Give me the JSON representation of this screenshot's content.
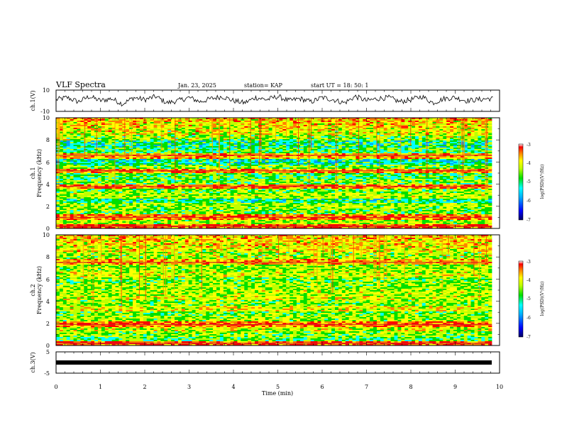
{
  "header": {
    "title": "VLF Spectra",
    "date": "Jan. 23, 2025",
    "station": "station= KAP",
    "start_time": "start  UT =   18: 50: 1"
  },
  "chart_data": [
    {
      "type": "line",
      "panel": "ch1-waveform",
      "ylabel": "ch.1(V)",
      "ylim": [
        -10,
        10
      ],
      "y_tick_labels": [
        "10",
        "-10"
      ],
      "xlim": [
        0,
        10
      ],
      "description_values": "noisy waveform oscillating roughly between -6 and +6 V around a small positive offset",
      "series": [
        {
          "x": [
            0,
            0.25,
            0.5,
            0.75,
            1.0,
            1.25,
            1.5,
            1.75,
            2.0,
            2.25,
            2.5,
            2.75,
            3.0,
            3.25,
            3.5,
            3.75,
            4.0,
            4.25,
            4.5,
            4.75,
            5.0,
            5.25,
            5.5,
            5.75,
            6.0,
            6.25,
            6.5,
            6.75,
            7.0,
            7.25,
            7.5,
            7.75,
            8.0,
            8.25,
            8.5,
            8.75,
            9.0,
            9.25,
            9.5,
            9.75
          ],
          "values": [
            1,
            3,
            -1,
            4,
            0,
            2,
            -3,
            3,
            1,
            4,
            -2,
            0,
            3,
            -1,
            2,
            4,
            0,
            -2,
            3,
            1,
            4,
            0,
            2,
            -1,
            3,
            1,
            -2,
            4,
            0,
            2,
            3,
            -1,
            1,
            4,
            -2,
            2,
            3,
            0,
            1,
            2
          ]
        }
      ]
    },
    {
      "type": "heatmap",
      "panel": "ch1-spectrogram",
      "ylabel_top": "ch.1",
      "ylabel": "Frequency (kHz)",
      "ylim": [
        0,
        10
      ],
      "y_tick_labels": [
        "0",
        "2",
        "4",
        "6",
        "8",
        "10"
      ],
      "xlim": [
        0,
        10
      ],
      "colorbar": {
        "label": "log(PSD)(V²/Hz)",
        "range": [
          -7,
          -3
        ],
        "tick_labels": [
          "-3",
          "-4",
          "-5",
          "-6",
          "-7"
        ]
      },
      "band_log_psd": [
        {
          "f_khz": 0.2,
          "level": -3.4
        },
        {
          "f_khz": 0.6,
          "level": -4.6
        },
        {
          "f_khz": 1.0,
          "level": -3.6
        },
        {
          "f_khz": 1.5,
          "level": -4.8
        },
        {
          "f_khz": 2.0,
          "level": -4.6
        },
        {
          "f_khz": 2.5,
          "level": -5.2
        },
        {
          "f_khz": 3.0,
          "level": -4.5
        },
        {
          "f_khz": 3.5,
          "level": -4.8
        },
        {
          "f_khz": 3.8,
          "level": -3.6
        },
        {
          "f_khz": 4.2,
          "level": -4.8
        },
        {
          "f_khz": 4.7,
          "level": -5.0
        },
        {
          "f_khz": 5.2,
          "level": -3.7
        },
        {
          "f_khz": 5.6,
          "level": -4.7
        },
        {
          "f_khz": 6.0,
          "level": -5.3
        },
        {
          "f_khz": 6.6,
          "level": -3.9
        },
        {
          "f_khz": 7.1,
          "level": -5.0
        },
        {
          "f_khz": 7.6,
          "level": -5.2
        },
        {
          "f_khz": 8.2,
          "level": -4.7
        },
        {
          "f_khz": 8.8,
          "level": -4.4
        },
        {
          "f_khz": 9.4,
          "level": -4.2
        },
        {
          "f_khz": 9.9,
          "level": -4.0
        }
      ]
    },
    {
      "type": "heatmap",
      "panel": "ch2-spectrogram",
      "ylabel_top": "ch.2",
      "ylabel": "Frequency (kHz)",
      "ylim": [
        0,
        10
      ],
      "y_tick_labels": [
        "0",
        "2",
        "4",
        "6",
        "8",
        "10"
      ],
      "xlim": [
        0,
        10
      ],
      "colorbar": {
        "label": "log(PSD)(V²/Hz)",
        "range": [
          -7,
          -3
        ],
        "tick_labels": [
          "-3",
          "-4",
          "-5",
          "-6",
          "-7"
        ]
      },
      "band_log_psd": [
        {
          "f_khz": 0.2,
          "level": -3.5
        },
        {
          "f_khz": 0.6,
          "level": -5.0
        },
        {
          "f_khz": 1.0,
          "level": -4.7
        },
        {
          "f_khz": 1.5,
          "level": -4.4
        },
        {
          "f_khz": 1.9,
          "level": -3.6
        },
        {
          "f_khz": 2.4,
          "level": -4.6
        },
        {
          "f_khz": 2.9,
          "level": -4.8
        },
        {
          "f_khz": 3.3,
          "level": -4.3
        },
        {
          "f_khz": 3.8,
          "level": -4.7
        },
        {
          "f_khz": 4.3,
          "level": -4.4
        },
        {
          "f_khz": 4.8,
          "level": -4.5
        },
        {
          "f_khz": 5.3,
          "level": -4.6
        },
        {
          "f_khz": 5.9,
          "level": -4.8
        },
        {
          "f_khz": 6.4,
          "level": -4.4
        },
        {
          "f_khz": 7.0,
          "level": -4.6
        },
        {
          "f_khz": 7.5,
          "level": -3.9
        },
        {
          "f_khz": 8.1,
          "level": -4.6
        },
        {
          "f_khz": 8.7,
          "level": -4.3
        },
        {
          "f_khz": 9.3,
          "level": -4.2
        },
        {
          "f_khz": 9.8,
          "level": -4.1
        }
      ]
    },
    {
      "type": "line",
      "panel": "ch3-waveform",
      "ylabel": "ch.3(V)",
      "ylim": [
        -5,
        5
      ],
      "y_tick_labels": [
        "5",
        "-5"
      ],
      "xlim": [
        0,
        10
      ],
      "series": [
        {
          "x": [
            0,
            9.85
          ],
          "values": [
            0,
            0
          ]
        }
      ]
    }
  ],
  "x_axis": {
    "label": "Time (min)",
    "tick_labels": [
      "0",
      "1",
      "2",
      "3",
      "4",
      "5",
      "6",
      "7",
      "8",
      "9",
      "10"
    ]
  },
  "colors": {
    "colormap": [
      "#000070",
      "#0000ff",
      "#00a0ff",
      "#00ffff",
      "#00e000",
      "#c0ff00",
      "#ffff00",
      "#ff8000",
      "#ff0000",
      "#ffffff"
    ]
  }
}
